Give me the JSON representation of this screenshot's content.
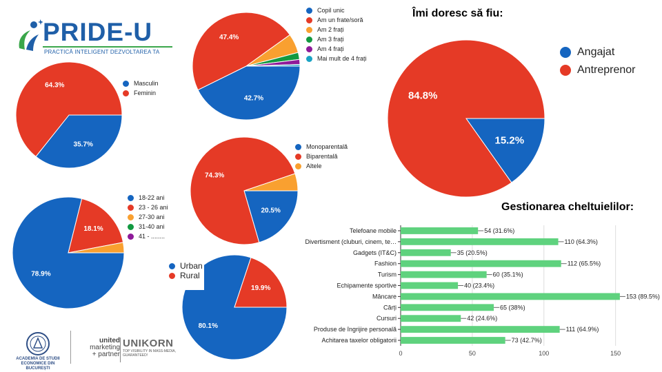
{
  "header": {
    "logo_title": "PRIDE-U",
    "logo_tagline": "PRACTICĂ INTELIGENT DEZVOLTAREA TA"
  },
  "footer": {
    "ase_caption": "ACADEMIA DE STUDII ECONOMICE DIN BUCUREȘTI",
    "united_line1": "united",
    "united_line2": "marketing",
    "united_line3": "+ partner",
    "unikorn_name": "UNIKORN",
    "unikorn_caption": "TOP VISIBILITY IN MASS-MEDIA, GUARANTEED!"
  },
  "colors": {
    "blue": "#1565c0",
    "red": "#e53a26",
    "orange": "#f9a030",
    "green": "#129940",
    "purple": "#8e1a99",
    "teal": "#1aa3c4",
    "bar": "#5fd27e"
  },
  "chart_data": [
    {
      "id": "gender",
      "type": "pie",
      "title": "",
      "labels": [
        "Masculin",
        "Feminin"
      ],
      "values": [
        35.7,
        64.3
      ],
      "data_labels": [
        "35.7%",
        "64.3%"
      ],
      "colors": [
        "#1565c0",
        "#e53a26"
      ],
      "legend": "right"
    },
    {
      "id": "siblings",
      "type": "pie",
      "title": "",
      "labels": [
        "Copil unic",
        "Am un frate/soră",
        "Am 2 frați",
        "Am 3 frați",
        "Am 4 frați",
        "Mai mult de 4 frați"
      ],
      "values": [
        42.7,
        47.4,
        5.8,
        2.1,
        1.5,
        0.5
      ],
      "data_labels": [
        "42.7%",
        "47.4%",
        "",
        "",
        "",
        ""
      ],
      "colors": [
        "#1565c0",
        "#e53a26",
        "#f9a030",
        "#129940",
        "#8e1a99",
        "#1aa3c4"
      ],
      "legend": "right"
    },
    {
      "id": "family",
      "type": "pie",
      "title": "",
      "labels": [
        "Monoparentală",
        "Biparentală",
        "Altele"
      ],
      "values": [
        20.5,
        74.3,
        5.2
      ],
      "data_labels": [
        "20.5%",
        "74.3%",
        ""
      ],
      "colors": [
        "#1565c0",
        "#e53a26",
        "#f9a030"
      ],
      "legend": "right"
    },
    {
      "id": "age",
      "type": "pie",
      "title": "",
      "labels": [
        "18-22 ani",
        "23 - 26 ani",
        "27-30 ani",
        "31-40 ani",
        "41 - ........"
      ],
      "values": [
        78.9,
        18.1,
        3.0,
        0,
        0
      ],
      "data_labels": [
        "78.9%",
        "18.1%",
        "",
        "",
        ""
      ],
      "colors": [
        "#1565c0",
        "#e53a26",
        "#f9a030",
        "#129940",
        "#8e1a99"
      ],
      "legend": "right"
    },
    {
      "id": "residence",
      "type": "pie",
      "title": "",
      "labels": [
        "Urban",
        "Rural"
      ],
      "values": [
        80.1,
        19.9
      ],
      "data_labels": [
        "80.1%",
        "19.9%"
      ],
      "colors": [
        "#1565c0",
        "#e53a26"
      ],
      "legend": "left"
    },
    {
      "id": "aspiration",
      "type": "pie",
      "title": "Îmi doresc să fiu:",
      "labels": [
        "Angajat",
        "Antreprenor"
      ],
      "values": [
        15.2,
        84.8
      ],
      "data_labels": [
        "15.2%",
        "84.8%"
      ],
      "colors": [
        "#1565c0",
        "#e53a26"
      ],
      "legend": "right"
    },
    {
      "id": "expenses",
      "type": "bar",
      "orientation": "horizontal",
      "title": "Gestionarea cheltuielilor:",
      "categories": [
        "Telefoane mobile",
        "Divertisment (cluburi, cinem, te…",
        "Gadgets (IT&C)",
        "Fashion",
        "Turism",
        "Echipamente sportive",
        "Mâncare",
        "Cărți",
        "Cursuri",
        "Produse de îngrijire personală",
        "Achitarea taxelor obligatorii"
      ],
      "values": [
        54,
        110,
        35,
        112,
        60,
        40,
        153,
        65,
        42,
        111,
        73
      ],
      "data_labels": [
        "54 (31.6%)",
        "110 (64.3%)",
        "35 (20.5%)",
        "112 (65.5%)",
        "60 (35.1%)",
        "40 (23.4%)",
        "153 (89.5%)",
        "65 (38%)",
        "42 (24.6%)",
        "111 (64.9%)",
        "73 (42.7%)"
      ],
      "x_ticks": [
        "0",
        "50",
        "100",
        "150"
      ],
      "xlim": [
        0,
        180
      ],
      "grid": true,
      "color": "#5fd27e"
    }
  ]
}
